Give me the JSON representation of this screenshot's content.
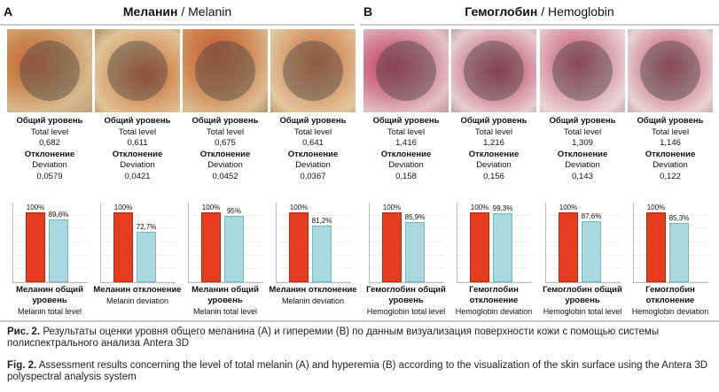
{
  "panels": [
    {
      "letter": "A",
      "title_bold": "Меланин",
      "title_rest": " / Melanin",
      "items": [
        {
          "ru1": "Общий уровень",
          "en1": "Total level",
          "v1": "0,682",
          "ru2": "Отклонение",
          "en2": "Deviation",
          "v2": "0,0579",
          "bar_ref_label": "100%",
          "bar_val_label": "89,6%",
          "bar_val": 0.896,
          "cap_ru": "Меланин общий уровень",
          "cap_en": "Melanin total level"
        },
        {
          "ru1": "Общий уровень",
          "en1": "Total level",
          "v1": "0,611",
          "ru2": "Отклонение",
          "en2": "Deviation",
          "v2": "0,0421",
          "bar_ref_label": "100%",
          "bar_val_label": "72,7%",
          "bar_val": 0.727,
          "cap_ru": "Меланин отклонение",
          "cap_en": "Melanin deviation"
        },
        {
          "ru1": "Общий уровень",
          "en1": "Total level",
          "v1": "0,675",
          "ru2": "Отклонение",
          "en2": "Deviation",
          "v2": "0,0452",
          "bar_ref_label": "100%",
          "bar_val_label": "95%",
          "bar_val": 0.95,
          "cap_ru": "Меланин общий уровень",
          "cap_en": "Melanin total level"
        },
        {
          "ru1": "Общий уровень",
          "en1": "Total level",
          "v1": "0,641",
          "ru2": "Отклонение",
          "en2": "Deviation",
          "v2": "0,0367",
          "bar_ref_label": "100%",
          "bar_val_label": "81,2%",
          "bar_val": 0.812,
          "cap_ru": "Меланин отклонение",
          "cap_en": "Melanin deviation"
        }
      ]
    },
    {
      "letter": "B",
      "title_bold": "Гемоглобин",
      "title_rest": " / Hemoglobin",
      "items": [
        {
          "ru1": "Общий уровень",
          "en1": "Total level",
          "v1": "1,416",
          "ru2": "Отклонение",
          "en2": "Deviation",
          "v2": "0,158",
          "bar_ref_label": "100%",
          "bar_val_label": "85,9%",
          "bar_val": 0.859,
          "cap_ru": "Гемоглобин общий уровень",
          "cap_en": "Hemoglobin total level"
        },
        {
          "ru1": "Общий уровень",
          "en1": "Total level",
          "v1": "1,216",
          "ru2": "Отклонение",
          "en2": "Deviation",
          "v2": "0,156",
          "bar_ref_label": "100%",
          "bar_val_label": "99,3%",
          "bar_val": 0.993,
          "cap_ru": "Гемоглобин отклонение",
          "cap_en": "Hemoglobin deviation"
        },
        {
          "ru1": "Общий уровень",
          "en1": "Total level",
          "v1": "1,309",
          "ru2": "Отклонение",
          "en2": "Deviation",
          "v2": "0,143",
          "bar_ref_label": "100%",
          "bar_val_label": "87,6%",
          "bar_val": 0.876,
          "cap_ru": "Гемоглобин общий уровень",
          "cap_en": "Hemoglobin total level"
        },
        {
          "ru1": "Общий уровень",
          "en1": "Total level",
          "v1": "1,146",
          "ru2": "Отклонение",
          "en2": "Deviation",
          "v2": "0,122",
          "bar_ref_label": "100%",
          "bar_val_label": "85,3%",
          "bar_val": 0.853,
          "cap_ru": "Гемоглобин отклонение",
          "cap_en": "Hemoglobin deviation"
        }
      ]
    }
  ],
  "colors": {
    "ref_bar": "#e63c1f",
    "value_bar": "#a9d8de",
    "melanin_skin": "#c98a4f",
    "hemoglobin_skin": "#c46a7d"
  },
  "caption": {
    "ru_prefix": "Рис. 2.",
    "ru_text": " Результаты оценки уровня общего меланина (A) и гиперемии (B) по данным визуализация поверхности кожи с помощью системы полиспектрального анализа Antera 3D",
    "en_prefix": "Fig. 2.",
    "en_text": " Assessment results concerning the level of total melanin (A) and hyperemia (B) according to the visualization of the skin surface using the Antera 3D polyspectral analysis system"
  }
}
